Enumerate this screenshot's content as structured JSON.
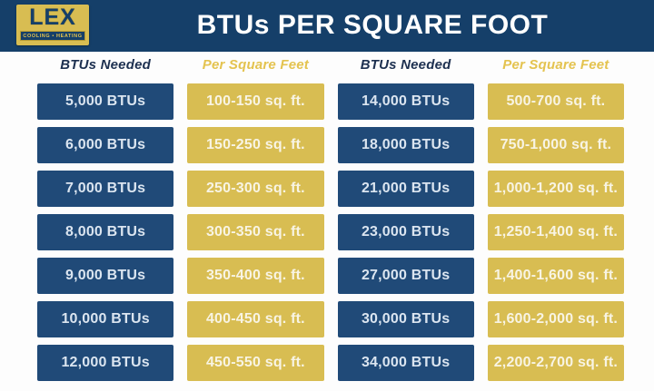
{
  "header": {
    "title": "BTUs PER SQUARE FOOT",
    "logo": {
      "name": "LEX",
      "tagline": "COOLING • HEATING"
    }
  },
  "chart_data": {
    "type": "table",
    "title": "BTUs PER SQUARE FOOT",
    "columns": [
      {
        "label": "BTUs Needed",
        "style": "navy"
      },
      {
        "label": "Per Square Feet",
        "style": "gold"
      },
      {
        "label": "BTUs Needed",
        "style": "navy"
      },
      {
        "label": "Per Square Feet",
        "style": "gold"
      }
    ],
    "rows": [
      [
        "5,000 BTUs",
        "100-150 sq. ft.",
        "14,000 BTUs",
        "500-700 sq. ft."
      ],
      [
        "6,000 BTUs",
        "150-250 sq. ft.",
        "18,000 BTUs",
        "750-1,000 sq. ft."
      ],
      [
        "7,000 BTUs",
        "250-300 sq. ft.",
        "21,000 BTUs",
        "1,000-1,200 sq. ft."
      ],
      [
        "8,000 BTUs",
        "300-350 sq. ft.",
        "23,000 BTUs",
        "1,250-1,400 sq. ft."
      ],
      [
        "9,000 BTUs",
        "350-400 sq. ft.",
        "27,000 BTUs",
        "1,400-1,600 sq. ft."
      ],
      [
        "10,000 BTUs",
        "400-450 sq. ft.",
        "30,000 BTUs",
        "1,600-2,000 sq. ft."
      ],
      [
        "12,000 BTUs",
        "450-550 sq. ft.",
        "34,000 BTUs",
        "2,200-2,700 sq. ft."
      ]
    ]
  },
  "colors": {
    "header_navy": "#153f69",
    "cell_navy": "#204a78",
    "gold": "#d8bd52",
    "gold_header_text": "#e4c34f",
    "navy_header_text": "#1d3050"
  }
}
